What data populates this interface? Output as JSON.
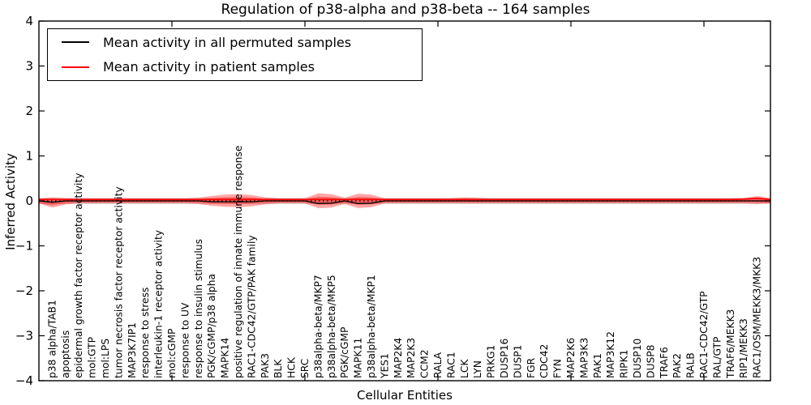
{
  "figure": {
    "title": "Regulation of p38-alpha and p38-beta -- 164 samples",
    "xlabel": "Cellular Entities",
    "ylabel": "Inferred Activity"
  },
  "legend": {
    "items": [
      {
        "label": "Mean activity in all permuted samples",
        "color": "#000000"
      },
      {
        "label": "Mean activity in patient samples",
        "color": "#ff0000"
      }
    ]
  },
  "chart_data": {
    "type": "violin",
    "title": "Regulation of p38-alpha and p38-beta -- 164 samples",
    "xlabel": "Cellular Entities",
    "ylabel": "Inferred Activity",
    "ylim": [
      -4,
      4
    ],
    "yticks": [
      4,
      3,
      2,
      1,
      0,
      -1,
      -2,
      -3,
      -4
    ],
    "ytick_labels": [
      "4",
      "3",
      "2",
      "1",
      "0",
      "−1",
      "−2",
      "−3",
      "−4"
    ],
    "x_axis_data_range": [
      0,
      55
    ],
    "x_major_ticks": [
      10,
      20,
      30,
      40,
      50
    ],
    "grid": false,
    "legend_position": "upper left",
    "zero_line": {
      "value": 0,
      "style": "dotted",
      "color": "#000000"
    },
    "categories": [
      "p38 alpha/TAB1",
      "apoptosis",
      "epidermal growth factor receptor activity",
      "mol:GTP",
      "mol:LPS",
      "tumor necrosis factor receptor activity",
      "MAP3K7IP1",
      "response to stress",
      "interleukin-1 receptor activity",
      "mol:cGMP",
      "response to UV",
      "response to insulin stimulus",
      "PGK/cGMP/p38 alpha",
      "MAPK14",
      "positive regulation of innate immune response",
      "RAC1-CDC42/GTP/PAK family",
      "PAK3",
      "BLK",
      "HCK",
      "SRC",
      "p38alpha-beta/MKP7",
      "p38alpha-beta/MKP5",
      "PGK/cGMP",
      "MAPK11",
      "p38alpha-beta/MKP1",
      "YES1",
      "MAP2K4",
      "MAP2K3",
      "CCM2",
      "RALA",
      "RAC1",
      "LCK",
      "LYN",
      "PRKG1",
      "DUSP16",
      "DUSP1",
      "FGR",
      "CDC42",
      "FYN",
      "MAP2K6",
      "MAP3K3",
      "PAK1",
      "MAP3K12",
      "RIPK1",
      "DUSP10",
      "DUSP8",
      "TRAF6",
      "PAK2",
      "RALB",
      "RAC1-CDC42/GTP",
      "RAL/GTP",
      "TRAF6/MEKK3",
      "RIP1/MEKK3",
      "RAC1/OSM/MEKK3/MKK3"
    ],
    "series": [
      {
        "name": "Mean activity in all permuted samples",
        "color": "#000000",
        "values": [
          -0.03,
          0,
          0,
          0,
          0,
          0,
          0,
          0,
          0,
          0,
          0,
          0,
          -0.02,
          -0.02,
          -0.02,
          -0.02,
          0,
          0,
          0,
          0,
          -0.06,
          -0.05,
          0,
          -0.06,
          -0.05,
          0,
          0,
          0,
          0,
          0,
          0,
          0,
          0,
          0,
          0,
          0,
          0,
          0,
          0,
          0,
          0,
          0,
          0,
          0,
          0,
          0,
          0,
          0,
          0,
          0,
          0,
          0,
          0,
          0
        ]
      },
      {
        "name": "Mean activity in patient samples",
        "color": "#ff0000",
        "values": [
          0.03,
          0.03,
          0.03,
          0.03,
          0.03,
          0.03,
          0.03,
          0.03,
          0.03,
          0.03,
          0.03,
          0.03,
          0.03,
          0.03,
          0.03,
          0.03,
          0.03,
          0.03,
          0.03,
          0.03,
          0.03,
          0.03,
          0.03,
          0.03,
          0.03,
          0.03,
          0.03,
          0.03,
          0.03,
          0.03,
          0.03,
          0.03,
          0.03,
          0.03,
          0.03,
          0.03,
          0.03,
          0.03,
          0.03,
          0.03,
          0.03,
          0.03,
          0.03,
          0.03,
          0.03,
          0.03,
          0.03,
          0.03,
          0.03,
          0.03,
          0.03,
          0.03,
          0.04,
          0.06
        ]
      }
    ],
    "patient_envelope": {
      "description": "violin-like spread of patient sample activity per entity",
      "fill_color": "#ff0000",
      "fill_opacity": 0.35,
      "upper": [
        0.08,
        0.06,
        0.055,
        0.055,
        0.055,
        0.055,
        0.055,
        0.055,
        0.055,
        0.055,
        0.055,
        0.07,
        0.11,
        0.14,
        0.15,
        0.13,
        0.08,
        0.055,
        0.055,
        0.06,
        0.17,
        0.15,
        0.07,
        0.16,
        0.14,
        0.055,
        0.055,
        0.055,
        0.055,
        0.055,
        0.06,
        0.08,
        0.07,
        0.055,
        0.055,
        0.055,
        0.055,
        0.055,
        0.055,
        0.055,
        0.055,
        0.055,
        0.055,
        0.055,
        0.055,
        0.055,
        0.055,
        0.055,
        0.055,
        0.055,
        0.055,
        0.055,
        0.06,
        0.11
      ],
      "lower": [
        -0.15,
        -0.08,
        -0.055,
        -0.055,
        -0.055,
        -0.055,
        -0.055,
        -0.055,
        -0.055,
        -0.055,
        -0.055,
        -0.07,
        -0.11,
        -0.13,
        -0.14,
        -0.12,
        -0.08,
        -0.055,
        -0.055,
        -0.06,
        -0.16,
        -0.15,
        -0.07,
        -0.16,
        -0.14,
        -0.055,
        -0.055,
        -0.055,
        -0.055,
        -0.055,
        -0.055,
        -0.06,
        -0.06,
        -0.055,
        -0.055,
        -0.055,
        -0.055,
        -0.055,
        -0.055,
        -0.055,
        -0.055,
        -0.055,
        -0.055,
        -0.055,
        -0.055,
        -0.055,
        -0.055,
        -0.055,
        -0.055,
        -0.055,
        -0.055,
        -0.055,
        -0.055,
        -0.07
      ]
    },
    "permuted_envelope": {
      "description": "spread of permuted sample activity, near-constant band around 0",
      "fill_color": "#888888",
      "fill_opacity": 0.3,
      "upper": 0.07,
      "lower": -0.07
    }
  }
}
